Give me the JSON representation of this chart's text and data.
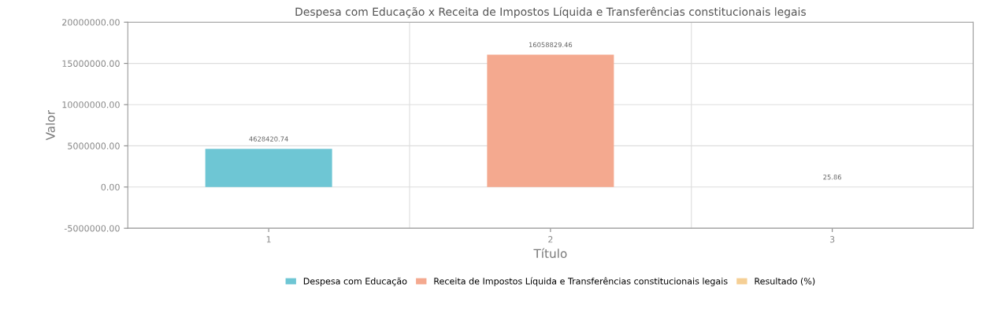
{
  "chart_data": {
    "type": "bar",
    "title": "Despesa com Educação x Receita de Impostos Líquida e Transferências constitucionais legais",
    "xlabel": "Título",
    "ylabel": "Valor",
    "categories": [
      "1",
      "2",
      "3"
    ],
    "series": [
      {
        "name": "Despesa com Educação",
        "color": "#6ec6d4",
        "values": [
          4628420.74,
          null,
          null
        ]
      },
      {
        "name": "Receita de Impostos Líquida e Transferências constitucionais legais",
        "color": "#f4a98f",
        "values": [
          null,
          16058829.46,
          null
        ]
      },
      {
        "name": "Resultado (%)",
        "color": "#f5cf95",
        "values": [
          null,
          null,
          25.86
        ]
      }
    ],
    "ylim": [
      -5000000,
      20000000
    ],
    "yticks": [
      {
        "value": -5000000,
        "label": "-5000000.00"
      },
      {
        "value": 0,
        "label": "0.00"
      },
      {
        "value": 5000000,
        "label": "5000000.00"
      },
      {
        "value": 10000000,
        "label": "10000000.00"
      },
      {
        "value": 15000000,
        "label": "15000000.00"
      },
      {
        "value": 20000000,
        "label": "20000000.00"
      }
    ],
    "data_labels": true,
    "grid": true,
    "legend": "bottom"
  }
}
